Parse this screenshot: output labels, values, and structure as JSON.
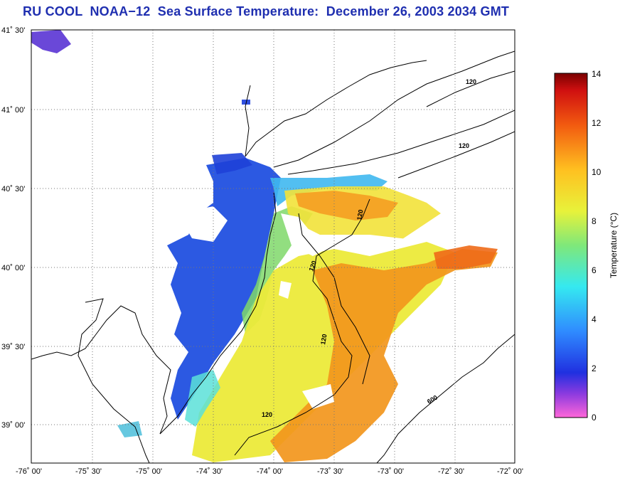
{
  "title": "RU COOL  NOAA−12  Sea Surface Temperature:  December 26, 2003 2034 GMT",
  "x_ticks": [
    "-76˚ 00'",
    "-75˚ 30'",
    "-75˚ 00'",
    "-74˚ 30'",
    "-74˚ 00'",
    "-73˚ 30'",
    "-73˚ 00'",
    "-72˚ 30'",
    "-72˚ 00'"
  ],
  "y_ticks": [
    "41˚ 30'",
    "41˚ 00'",
    "40˚ 30'",
    "40˚ 00'",
    "39˚ 30'",
    "39˚ 00'"
  ],
  "colorbar": {
    "label": "Temperature (°C)",
    "ticks": [
      "14",
      "12",
      "10",
      "8",
      "6",
      "4",
      "2",
      "0"
    ],
    "min": 0,
    "max": 14
  },
  "contour_labels": [
    "120",
    "120",
    "120",
    "120",
    "120",
    "120",
    "600"
  ],
  "colors": {
    "title": "#1f2fb0",
    "cold": "#1a3ccf",
    "mid": "#f0e63a",
    "warm": "#f08a1c"
  }
}
